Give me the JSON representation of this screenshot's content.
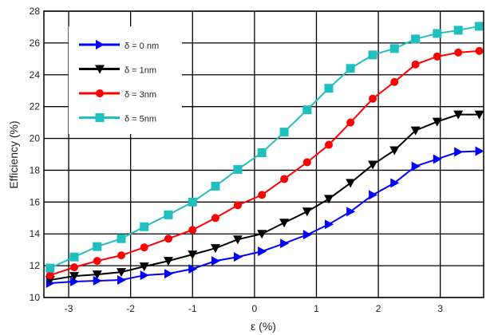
{
  "chart_data": {
    "type": "line",
    "title": "",
    "xlabel": "ε (%)",
    "ylabel": "Efficiency (%)",
    "xlim": [
      -3.4,
      3.7
    ],
    "ylim": [
      10,
      28
    ],
    "grid": true,
    "legend_position": "top-left",
    "xticks": [
      -3,
      -2,
      -1,
      0,
      1,
      2,
      3
    ],
    "yticks": [
      10,
      12,
      14,
      16,
      18,
      20,
      22,
      24,
      26,
      28
    ],
    "x": [
      -3.3,
      -2.91,
      -2.54,
      -2.15,
      -1.78,
      -1.39,
      -1.0,
      -0.63,
      -0.27,
      0.12,
      0.48,
      0.85,
      1.2,
      1.55,
      1.91,
      2.26,
      2.6,
      2.95,
      3.29,
      3.63
    ],
    "series": [
      {
        "name": "δ = 0 nm",
        "color": "#0000ff",
        "marker": "triangle-right",
        "values": [
          10.9,
          11.0,
          11.05,
          11.1,
          11.4,
          11.5,
          11.8,
          12.3,
          12.55,
          12.9,
          13.4,
          13.95,
          14.6,
          15.4,
          16.45,
          17.2,
          18.25,
          18.7,
          19.15,
          19.2
        ]
      },
      {
        "name": "δ = 1nm",
        "color": "#000000",
        "marker": "triangle-down",
        "values": [
          11.1,
          11.35,
          11.45,
          11.6,
          11.95,
          12.3,
          12.7,
          13.1,
          13.65,
          14.0,
          14.7,
          15.4,
          16.2,
          17.2,
          18.35,
          19.25,
          20.5,
          21.05,
          21.5,
          21.5
        ]
      },
      {
        "name": "δ = 3nm",
        "color": "#ff0000",
        "marker": "circle",
        "values": [
          11.4,
          11.9,
          12.3,
          12.65,
          13.15,
          13.7,
          14.25,
          15.0,
          15.8,
          16.45,
          17.45,
          18.5,
          19.6,
          21.0,
          22.5,
          23.55,
          24.65,
          25.15,
          25.4,
          25.5
        ]
      },
      {
        "name": "δ = 5nm",
        "color": "#1fbfbf",
        "marker": "square",
        "values": [
          11.85,
          12.55,
          13.2,
          13.7,
          14.45,
          15.2,
          16.0,
          17.0,
          18.05,
          19.1,
          20.4,
          21.8,
          23.15,
          24.4,
          25.25,
          25.65,
          26.25,
          26.6,
          26.8,
          27.05
        ]
      }
    ]
  }
}
